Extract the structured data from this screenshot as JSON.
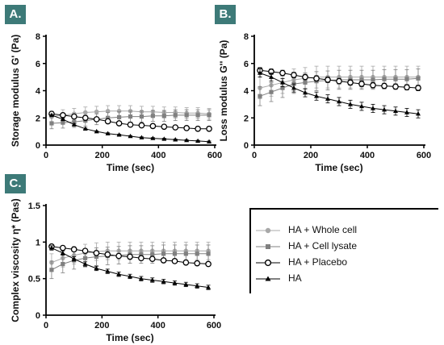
{
  "panels": [
    {
      "tag": "A.",
      "ylabel": "Storage modulus G' (Pa)",
      "xlabel": "Time (sec)"
    },
    {
      "tag": "B.",
      "ylabel": "Loss modulus G'' (Pa)",
      "xlabel": "Time (sec)"
    },
    {
      "tag": "C.",
      "ylabel": "Complex viscosity η* (Pas)",
      "xlabel": "Time (sec)"
    }
  ],
  "legend": [
    {
      "label": "HA + Whole cell",
      "color": "#a8a8a8",
      "marker": "circle-filled"
    },
    {
      "label": "HA + Cell lysate",
      "color": "#808080",
      "marker": "square-filled"
    },
    {
      "label": "HA + Placebo",
      "color": "#000000",
      "marker": "circle-open"
    },
    {
      "label": "HA",
      "color": "#000000",
      "marker": "triangle-filled"
    }
  ],
  "chart_data": [
    {
      "type": "line",
      "xlabel": "Time (sec)",
      "ylabel": "Storage modulus G' (Pa)",
      "xlim": [
        0,
        600
      ],
      "ylim": [
        0,
        8
      ],
      "xticks": [
        0,
        200,
        400,
        600
      ],
      "yticks": [
        0,
        2,
        4,
        6,
        8
      ],
      "x": [
        20,
        60,
        100,
        140,
        180,
        220,
        260,
        300,
        340,
        380,
        420,
        460,
        500,
        540,
        580
      ],
      "series": [
        {
          "name": "HA + Whole cell",
          "values": [
            2.1,
            2.2,
            2.3,
            2.4,
            2.45,
            2.5,
            2.5,
            2.5,
            2.45,
            2.45,
            2.4,
            2.4,
            2.35,
            2.35,
            2.3
          ],
          "error": 0.4
        },
        {
          "name": "HA + Cell lysate",
          "values": [
            1.6,
            1.65,
            1.7,
            1.8,
            1.9,
            2.0,
            2.05,
            2.1,
            2.1,
            2.15,
            2.15,
            2.2,
            2.2,
            2.2,
            2.2
          ],
          "error": 0.4
        },
        {
          "name": "HA + Placebo",
          "values": [
            2.3,
            2.2,
            2.1,
            2.0,
            1.9,
            1.75,
            1.6,
            1.5,
            1.45,
            1.4,
            1.35,
            1.3,
            1.25,
            1.2,
            1.2
          ],
          "error": 0.1
        },
        {
          "name": "HA",
          "values": [
            2.2,
            1.9,
            1.5,
            1.2,
            1.0,
            0.85,
            0.75,
            0.65,
            0.55,
            0.5,
            0.45,
            0.4,
            0.35,
            0.3,
            0.25
          ],
          "error": 0.05
        }
      ]
    },
    {
      "type": "line",
      "xlabel": "Time (sec)",
      "ylabel": "Loss modulus G'' (Pa)",
      "xlim": [
        0,
        600
      ],
      "ylim": [
        0,
        8
      ],
      "xticks": [
        0,
        200,
        400,
        600
      ],
      "yticks": [
        0,
        2,
        4,
        6,
        8
      ],
      "x": [
        20,
        60,
        100,
        140,
        180,
        220,
        260,
        300,
        340,
        380,
        420,
        460,
        500,
        540,
        580
      ],
      "series": [
        {
          "name": "HA + Whole cell",
          "values": [
            4.2,
            4.4,
            4.6,
            4.8,
            4.9,
            5.0,
            5.0,
            5.0,
            5.0,
            5.0,
            5.0,
            5.0,
            5.0,
            5.0,
            5.0
          ],
          "error": 0.8
        },
        {
          "name": "HA + Cell lysate",
          "values": [
            3.6,
            3.9,
            4.2,
            4.5,
            4.6,
            4.7,
            4.75,
            4.8,
            4.8,
            4.8,
            4.8,
            4.85,
            4.85,
            4.85,
            4.9
          ],
          "error": 0.7
        },
        {
          "name": "HA + Placebo",
          "values": [
            5.5,
            5.4,
            5.3,
            5.15,
            5.0,
            4.9,
            4.8,
            4.7,
            4.6,
            4.5,
            4.4,
            4.35,
            4.3,
            4.25,
            4.2
          ],
          "error": 0.2
        },
        {
          "name": "HA",
          "values": [
            5.3,
            5.0,
            4.6,
            4.2,
            3.85,
            3.6,
            3.4,
            3.2,
            3.0,
            2.85,
            2.7,
            2.6,
            2.5,
            2.4,
            2.3
          ],
          "error": 0.3
        }
      ]
    },
    {
      "type": "line",
      "xlabel": "Time (sec)",
      "ylabel": "Complex viscosity η* (Pas)",
      "xlim": [
        0,
        600
      ],
      "ylim": [
        0,
        1.5
      ],
      "xticks": [
        0,
        200,
        400,
        600
      ],
      "yticks": [
        0,
        0.5,
        1.0,
        1.5
      ],
      "x": [
        20,
        60,
        100,
        140,
        180,
        220,
        260,
        300,
        340,
        380,
        420,
        460,
        500,
        540,
        580
      ],
      "series": [
        {
          "name": "HA + Whole cell",
          "values": [
            0.72,
            0.78,
            0.82,
            0.85,
            0.87,
            0.88,
            0.88,
            0.88,
            0.88,
            0.88,
            0.88,
            0.88,
            0.88,
            0.88,
            0.88
          ],
          "error": 0.12
        },
        {
          "name": "HA + Cell lysate",
          "values": [
            0.62,
            0.7,
            0.75,
            0.78,
            0.8,
            0.81,
            0.82,
            0.83,
            0.83,
            0.83,
            0.84,
            0.84,
            0.84,
            0.84,
            0.84
          ],
          "error": 0.12
        },
        {
          "name": "HA + Placebo",
          "values": [
            0.94,
            0.92,
            0.9,
            0.88,
            0.85,
            0.83,
            0.81,
            0.8,
            0.78,
            0.77,
            0.75,
            0.74,
            0.72,
            0.71,
            0.7
          ],
          "error": 0.02
        },
        {
          "name": "HA",
          "values": [
            0.92,
            0.85,
            0.77,
            0.7,
            0.64,
            0.6,
            0.56,
            0.53,
            0.5,
            0.48,
            0.46,
            0.44,
            0.42,
            0.4,
            0.38
          ],
          "error": 0.03
        }
      ]
    }
  ]
}
